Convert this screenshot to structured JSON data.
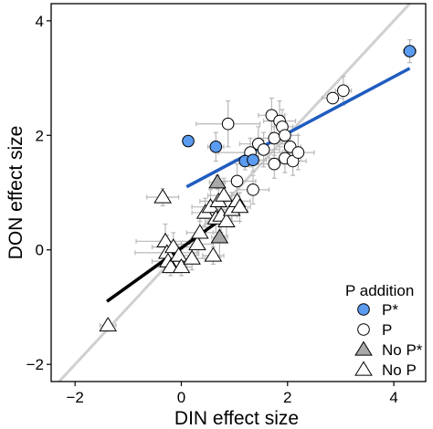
{
  "chart_data": {
    "type": "scatter",
    "xlabel": "DIN effect size",
    "ylabel": "DON effect size",
    "xlim": [
      -2.45,
      4.6
    ],
    "ylim": [
      -2.3,
      4.3
    ],
    "xticks": [
      -2,
      0,
      2,
      4
    ],
    "yticks": [
      -2,
      0,
      2,
      4
    ],
    "grid": false,
    "legend": {
      "title": "P addition",
      "placement": "bottom-right",
      "entries": [
        {
          "key": "P_star",
          "label": "P*",
          "marker": "circle",
          "fill": "#5b9bf0"
        },
        {
          "key": "P",
          "label": "P",
          "marker": "circle",
          "fill": "#ffffff"
        },
        {
          "key": "NoP_star",
          "label": "No P*",
          "marker": "triangle",
          "fill": "#a8a8a8"
        },
        {
          "key": "NoP",
          "label": "No P",
          "marker": "triangle",
          "fill": "#ffffff"
        }
      ]
    },
    "colors": {
      "p_fit": "#1f5cbf",
      "nop_fit": "#000000",
      "one_to_one": "#d0d0d0",
      "error_bar": "#b8b8b8"
    },
    "reference_line": {
      "name": "1:1",
      "points": [
        [
          -2.45,
          -2.45
        ],
        [
          4.6,
          4.6
        ]
      ]
    },
    "fit_lines": [
      {
        "group": "P",
        "points": [
          [
            0.1,
            1.1
          ],
          [
            4.3,
            3.17
          ]
        ]
      },
      {
        "group": "No P",
        "points": [
          [
            -1.4,
            -0.9
          ],
          [
            0.85,
            0.6
          ]
        ]
      }
    ],
    "series": [
      {
        "key": "P_star",
        "points": [
          {
            "x": 0.13,
            "y": 1.9,
            "xe": 0.1,
            "ye": 0.08
          },
          {
            "x": 0.65,
            "y": 1.8,
            "xe": 0.15,
            "ye": 0.25
          },
          {
            "x": 1.2,
            "y": 1.55,
            "xe": 0.2,
            "ye": 0.15
          },
          {
            "x": 1.35,
            "y": 1.57,
            "xe": 0.25,
            "ye": 0.2
          },
          {
            "x": 4.3,
            "y": 3.47,
            "xe": 0.12,
            "ye": 0.2
          }
        ]
      },
      {
        "key": "P",
        "points": [
          {
            "x": 0.88,
            "y": 2.2,
            "xe": 0.6,
            "ye": 0.4
          },
          {
            "x": 1.05,
            "y": 1.2,
            "xe": 0.35,
            "ye": 0.3
          },
          {
            "x": 1.3,
            "y": 1.7,
            "xe": 0.6,
            "ye": 0.25
          },
          {
            "x": 1.35,
            "y": 1.05,
            "xe": 0.3,
            "ye": 0.25
          },
          {
            "x": 1.45,
            "y": 1.85,
            "xe": 0.35,
            "ye": 0.3
          },
          {
            "x": 1.55,
            "y": 1.75,
            "xe": 0.3,
            "ye": 0.3
          },
          {
            "x": 1.7,
            "y": 2.35,
            "xe": 0.25,
            "ye": 0.3
          },
          {
            "x": 1.75,
            "y": 1.5,
            "xe": 0.4,
            "ye": 0.25
          },
          {
            "x": 1.75,
            "y": 1.95,
            "xe": 0.3,
            "ye": 0.3
          },
          {
            "x": 1.85,
            "y": 2.25,
            "xe": 0.3,
            "ye": 0.35
          },
          {
            "x": 1.9,
            "y": 2.15,
            "xe": 0.2,
            "ye": 0.3
          },
          {
            "x": 1.95,
            "y": 2.0,
            "xe": 0.25,
            "ye": 0.25
          },
          {
            "x": 1.95,
            "y": 1.6,
            "xe": 0.3,
            "ye": 0.25
          },
          {
            "x": 2.05,
            "y": 1.8,
            "xe": 0.2,
            "ye": 0.2
          },
          {
            "x": 2.1,
            "y": 1.55,
            "xe": 0.25,
            "ye": 0.25
          },
          {
            "x": 2.2,
            "y": 1.7,
            "xe": 0.3,
            "ye": 0.3
          },
          {
            "x": 2.85,
            "y": 2.65,
            "xe": 0.2,
            "ye": 0.1
          },
          {
            "x": 3.05,
            "y": 2.78,
            "xe": 0.15,
            "ye": 0.25
          }
        ]
      },
      {
        "key": "NoP_star",
        "points": [
          {
            "x": 0.68,
            "y": 1.18,
            "xe": 0.15,
            "ye": 0.12
          },
          {
            "x": 0.72,
            "y": 0.22,
            "xe": 0.15,
            "ye": 0.35
          }
        ]
      },
      {
        "key": "NoP",
        "points": [
          {
            "x": -1.38,
            "y": -1.32,
            "xe": 0.15,
            "ye": 0.1
          },
          {
            "x": -0.35,
            "y": 0.92,
            "xe": 0.3,
            "ye": 0.15
          },
          {
            "x": -0.3,
            "y": 0.15,
            "xe": 0.55,
            "ye": 0.3
          },
          {
            "x": -0.27,
            "y": -0.05,
            "xe": 0.6,
            "ye": 0.3
          },
          {
            "x": -0.25,
            "y": -0.2,
            "xe": 0.3,
            "ye": 0.2
          },
          {
            "x": -0.2,
            "y": -0.3,
            "xe": 0.3,
            "ye": 0.15
          },
          {
            "x": -0.15,
            "y": 0.05,
            "xe": 0.4,
            "ye": 0.25
          },
          {
            "x": -0.05,
            "y": -0.1,
            "xe": 0.3,
            "ye": 0.2
          },
          {
            "x": 0.0,
            "y": -0.3,
            "xe": 0.2,
            "ye": 0.15
          },
          {
            "x": 0.2,
            "y": -0.15,
            "xe": 0.25,
            "ye": 0.2
          },
          {
            "x": 0.3,
            "y": 0.1,
            "xe": 0.3,
            "ye": 0.2
          },
          {
            "x": 0.35,
            "y": 0.3,
            "xe": 0.25,
            "ye": 0.2
          },
          {
            "x": 0.45,
            "y": 0.65,
            "xe": 0.25,
            "ye": 0.25
          },
          {
            "x": 0.55,
            "y": 0.75,
            "xe": 0.35,
            "ye": 0.3
          },
          {
            "x": 0.6,
            "y": -0.1,
            "xe": 0.2,
            "ye": 0.15
          },
          {
            "x": 0.65,
            "y": 0.55,
            "xe": 0.3,
            "ye": 0.25
          },
          {
            "x": 0.7,
            "y": 0.85,
            "xe": 0.35,
            "ye": 0.3
          },
          {
            "x": 0.75,
            "y": 0.6,
            "xe": 0.3,
            "ye": 0.3
          },
          {
            "x": 0.8,
            "y": 0.95,
            "xe": 0.3,
            "ye": 0.3
          },
          {
            "x": 0.85,
            "y": 0.5,
            "xe": 0.25,
            "ye": 0.25
          },
          {
            "x": 0.95,
            "y": 0.7,
            "xe": 0.3,
            "ye": 0.3
          },
          {
            "x": 1.05,
            "y": 0.85,
            "xe": 0.25,
            "ye": 0.25
          },
          {
            "x": 1.1,
            "y": 0.75,
            "xe": 0.2,
            "ye": 0.25
          }
        ]
      }
    ]
  }
}
